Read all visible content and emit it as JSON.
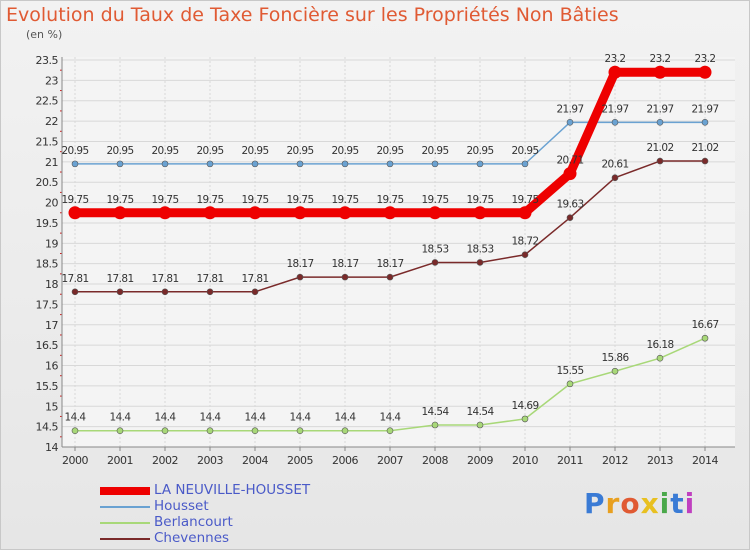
{
  "title": "Evolution du Taux de Taxe Foncière sur les Propriétés Non Bâties",
  "unit_label": "(en %)",
  "logo": {
    "text": "Proxiti",
    "colors": [
      "#3a7bd5",
      "#e8a020",
      "#e05a33",
      "#e8c020",
      "#4aa84a",
      "#3a7bd5",
      "#c040c0"
    ]
  },
  "chart_data": {
    "type": "line",
    "title": "Evolution du Taux de Taxe Foncière sur les Propriétés Non Bâties",
    "ylabel": "(en %)",
    "xlabel": "",
    "x": [
      "2000",
      "2001",
      "2002",
      "2003",
      "2004",
      "2005",
      "2006",
      "2007",
      "2008",
      "2009",
      "2010",
      "2011",
      "2012",
      "2013",
      "2014"
    ],
    "yticks": [
      "14",
      "14.5",
      "15",
      "15.5",
      "16",
      "16.5",
      "17",
      "17.5",
      "18",
      "18.5",
      "19",
      "19.5",
      "20",
      "20.5",
      "21",
      "21.5",
      "22",
      "22.5",
      "23",
      "23.5"
    ],
    "ylim": [
      14,
      23.5
    ],
    "grid": true,
    "series": [
      {
        "name": "LA NEUVILLE-HOUSSET",
        "color": "#ee0000",
        "thick": true,
        "values": [
          19.75,
          19.75,
          19.75,
          19.75,
          19.75,
          19.75,
          19.75,
          19.75,
          19.75,
          19.75,
          19.75,
          20.71,
          23.2,
          23.2,
          23.2
        ],
        "labels": [
          "19.75",
          "19.75",
          "19.75",
          "19.75",
          "19.75",
          "19.75",
          "19.75",
          "19.75",
          "19.75",
          "19.75",
          "19.75",
          "20.71",
          "23.2",
          "23.2",
          "23.2"
        ]
      },
      {
        "name": "Housset",
        "color": "#6aa2d2",
        "thick": false,
        "values": [
          20.95,
          20.95,
          20.95,
          20.95,
          20.95,
          20.95,
          20.95,
          20.95,
          20.95,
          20.95,
          20.95,
          21.97,
          21.97,
          21.97,
          21.97
        ],
        "labels": [
          "20.95",
          "20.95",
          "20.95",
          "20.95",
          "20.95",
          "20.95",
          "20.95",
          "20.95",
          "20.95",
          "20.95",
          "20.95",
          "21.97",
          "21.97",
          "21.97",
          "21.97"
        ]
      },
      {
        "name": "Berlancourt",
        "color": "#a8d878",
        "thick": false,
        "values": [
          14.4,
          14.4,
          14.4,
          14.4,
          14.4,
          14.4,
          14.4,
          14.4,
          14.54,
          14.54,
          14.69,
          15.55,
          15.86,
          16.18,
          16.67
        ],
        "labels": [
          "14.4",
          "14.4",
          "14.4",
          "14.4",
          "14.4",
          "14.4",
          "14.4",
          "14.4",
          "14.54",
          "14.54",
          "14.69",
          "15.55",
          "15.86",
          "16.18",
          "16.67"
        ]
      },
      {
        "name": "Chevennes",
        "color": "#7a2a2a",
        "thick": false,
        "values": [
          17.81,
          17.81,
          17.81,
          17.81,
          17.81,
          18.17,
          18.17,
          18.17,
          18.53,
          18.53,
          18.72,
          19.63,
          20.61,
          21.02,
          21.02
        ],
        "labels": [
          "17.81",
          "17.81",
          "17.81",
          "17.81",
          "17.81",
          "18.17",
          "18.17",
          "18.17",
          "18.53",
          "18.53",
          "18.72",
          "19.63",
          "20.61",
          "21.02",
          "21.02"
        ]
      }
    ]
  }
}
